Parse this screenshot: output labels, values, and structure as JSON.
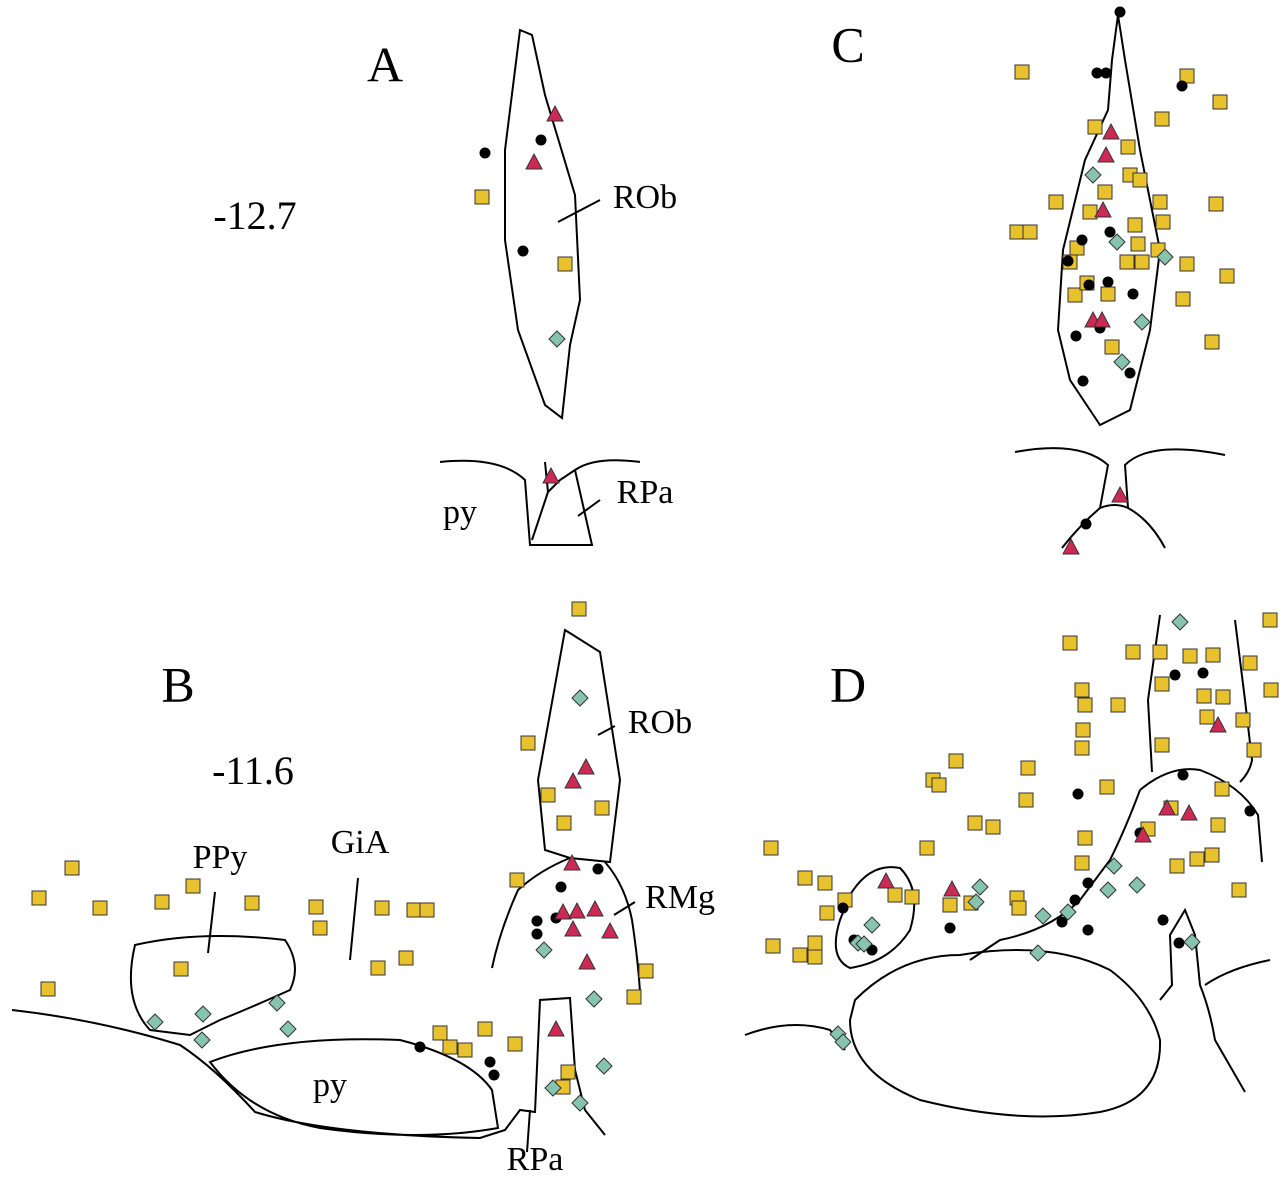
{
  "panels": [
    {
      "label": "A",
      "level": "-12.7",
      "regions": [
        "ROb",
        "py",
        "RPa"
      ]
    },
    {
      "label": "B",
      "level": "-11.6",
      "regions": [
        "PPy",
        "GiA",
        "ROb",
        "RMg",
        "py",
        "RPa"
      ]
    },
    {
      "label": "C"
    },
    {
      "label": "D"
    }
  ]
}
